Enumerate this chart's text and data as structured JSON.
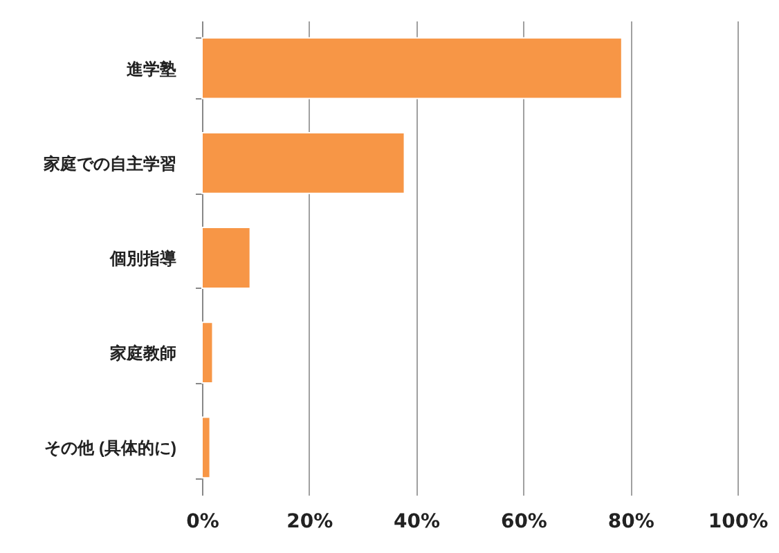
{
  "chart_data": {
    "type": "bar",
    "orientation": "horizontal",
    "categories": [
      "進学塾",
      "家庭での自主学習",
      "個別指導",
      "家庭教師",
      "その他 (具体的に)"
    ],
    "values": [
      78.4,
      37.8,
      9.0,
      2.0,
      1.5
    ],
    "color": "#f79646",
    "xlim": [
      0,
      100
    ],
    "xticks": [
      {
        "value": 0,
        "label": "0%"
      },
      {
        "value": 20,
        "label": "20%"
      },
      {
        "value": 40,
        "label": "40%"
      },
      {
        "value": 60,
        "label": "60%"
      },
      {
        "value": 80,
        "label": "80%"
      },
      {
        "value": 100,
        "label": "100%"
      }
    ],
    "grid": "x"
  }
}
